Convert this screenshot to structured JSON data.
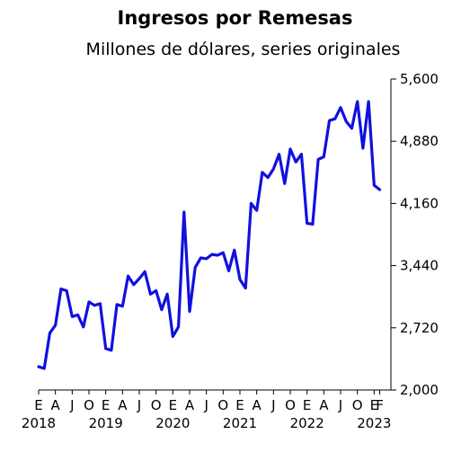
{
  "chart_data": {
    "type": "line",
    "title": "Ingresos por Remesas",
    "subtitle": "Millones de dólares, series originales",
    "xlabel": "",
    "ylabel": "",
    "ylim": [
      2000,
      5600
    ],
    "y_ticks": [
      "5,600",
      "4,880",
      "4,160",
      "3,440",
      "2,720",
      "2,000"
    ],
    "y_tick_values": [
      5600,
      4880,
      4160,
      3440,
      2720,
      2000
    ],
    "y_axis_position": "right",
    "grid": false,
    "month_tick_labels": [
      "E",
      "A",
      "J",
      "O",
      "E",
      "A",
      "J",
      "O",
      "E",
      "A",
      "J",
      "O",
      "E",
      "A",
      "J",
      "O",
      "E",
      "A",
      "J",
      "O",
      "E",
      "F"
    ],
    "year_labels": [
      "2018",
      "2019",
      "2020",
      "2021",
      "2022",
      "2023"
    ],
    "line_color": "#1010e0",
    "series": [
      {
        "x_start": "2018-01",
        "values": [
          2270,
          2250,
          2660,
          2750,
          3170,
          3150,
          2850,
          2870,
          2730,
          3020,
          2980,
          3000,
          2480,
          2460,
          2990,
          2970,
          3320,
          3220,
          3290,
          3370,
          3110,
          3150,
          2930,
          3110,
          2620,
          2730,
          4060,
          2910,
          3420,
          3530,
          3520,
          3570,
          3560,
          3590,
          3380,
          3620,
          3280,
          3180,
          4160,
          4080,
          4520,
          4460,
          4560,
          4730,
          4390,
          4790,
          4640,
          4730,
          3930,
          3920,
          4670,
          4700,
          5120,
          5140,
          5270,
          5110,
          5030,
          5340,
          4800,
          5340,
          4370,
          4320
        ]
      }
    ]
  }
}
